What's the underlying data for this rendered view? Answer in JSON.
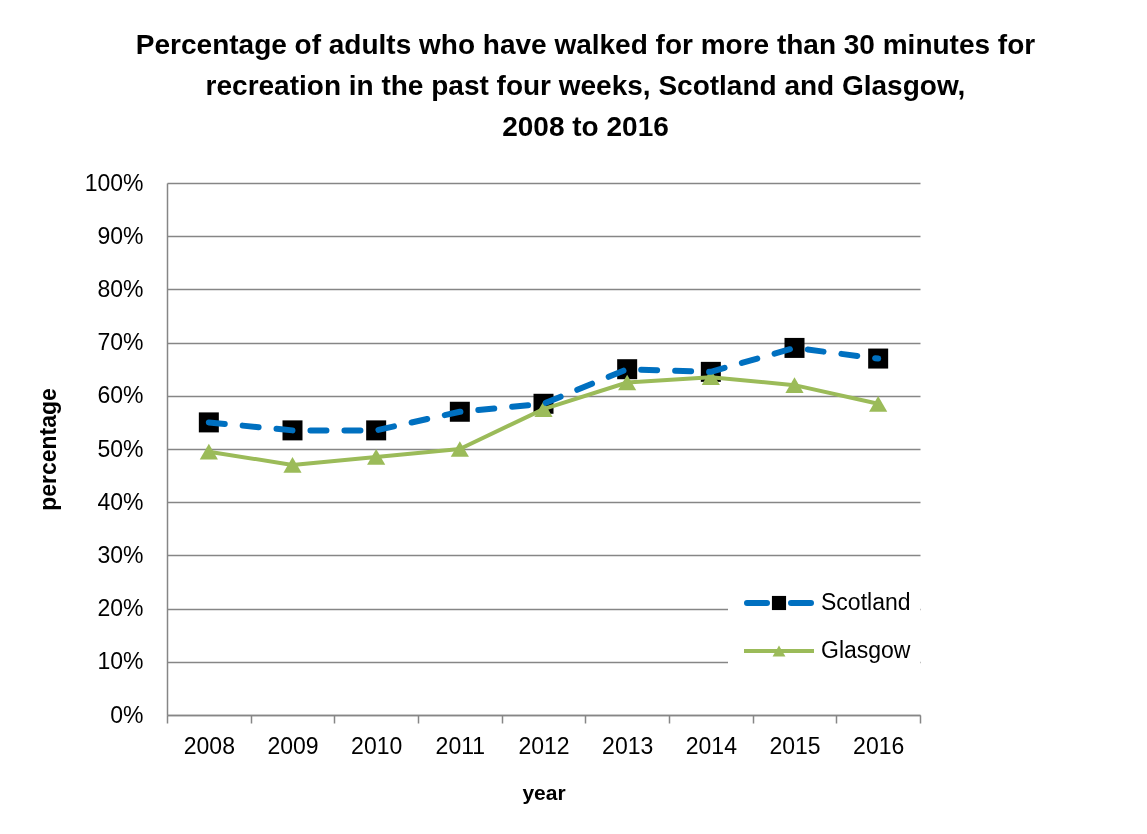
{
  "chart_data": {
    "type": "line",
    "title": "Percentage of adults who have walked for more than 30 minutes for\nrecreation in the past four weeks, Scotland and Glasgow,\n2008 to 2016",
    "xlabel": "year",
    "ylabel": "percentage",
    "categories": [
      "2008",
      "2009",
      "2010",
      "2011",
      "2012",
      "2013",
      "2014",
      "2015",
      "2016"
    ],
    "series": [
      {
        "name": "Scotland",
        "color": "#0070c0",
        "colors": [
          "#000000",
          "#000000",
          "#000000",
          "#000000",
          "#000000",
          "#000000",
          "#000000",
          "#000000",
          "#000000"
        ],
        "marker": "square",
        "line_style": "dashed",
        "values": [
          55,
          53.5,
          53.5,
          57,
          58.5,
          65,
          64.5,
          69,
          67
        ]
      },
      {
        "name": "Glasgow",
        "color": "#9bbb59",
        "marker": "triangle",
        "line_style": "solid",
        "values": [
          49.5,
          47,
          48.5,
          50,
          57.5,
          62.5,
          63.5,
          62,
          58.5
        ]
      }
    ],
    "ylim": [
      0,
      100
    ],
    "yticks": [
      {
        "value": 0,
        "label": "0%"
      },
      {
        "value": 10,
        "label": "10%"
      },
      {
        "value": 20,
        "label": "20%"
      },
      {
        "value": 30,
        "label": "30%"
      },
      {
        "value": 40,
        "label": "40%"
      },
      {
        "value": 50,
        "label": "50%"
      },
      {
        "value": 60,
        "label": "60%"
      },
      {
        "value": 70,
        "label": "70%"
      },
      {
        "value": 80,
        "label": "80%"
      },
      {
        "value": 90,
        "label": "90%"
      },
      {
        "value": 100,
        "label": "100%"
      }
    ],
    "grid": "y",
    "legend": "bottom right"
  }
}
